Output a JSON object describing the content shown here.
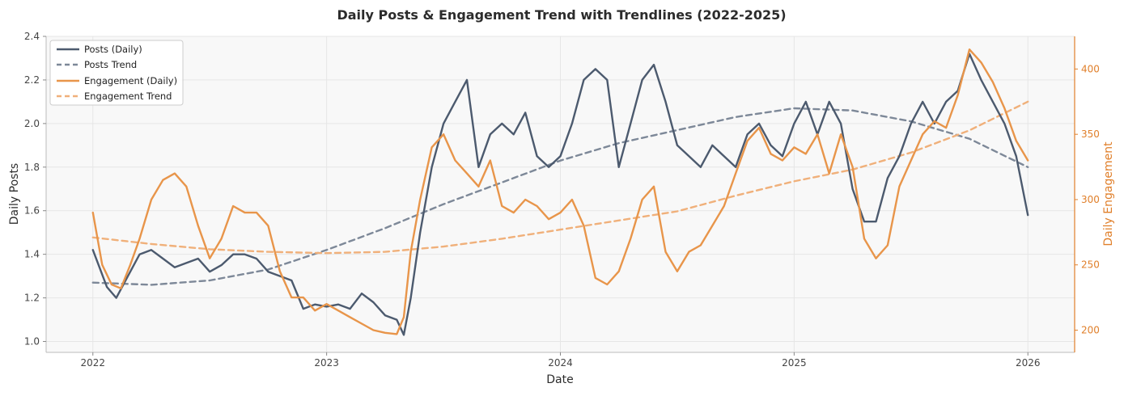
{
  "chart_data": {
    "type": "line",
    "title": "Daily Posts & Engagement Trend with Trendlines (2022-2025)",
    "xlabel": "Date",
    "ylabel_left": "Daily Posts",
    "ylabel_right": "Daily Engagement",
    "xlim": [
      2021.8,
      2026.2
    ],
    "ylim_left": [
      0.95,
      2.4
    ],
    "ylim_right": [
      183,
      425
    ],
    "x_ticks": [
      2022,
      2023,
      2024,
      2025,
      2026
    ],
    "x_tick_labels": [
      "2022",
      "2023",
      "2024",
      "2025",
      "2026"
    ],
    "y_left_ticks": [
      1.0,
      1.2,
      1.4,
      1.6,
      1.8,
      2.0,
      2.2,
      2.4
    ],
    "y_left_tick_labels": [
      "1.0",
      "1.2",
      "1.4",
      "1.6",
      "1.8",
      "2.0",
      "2.2",
      "2.4"
    ],
    "y_right_ticks": [
      200,
      250,
      300,
      350,
      400
    ],
    "y_right_tick_labels": [
      "200",
      "250",
      "300",
      "350",
      "400"
    ],
    "grid": true,
    "legend_position": "top-left",
    "colors": {
      "posts": "#4c5a6e",
      "posts_trend": "#7d8898",
      "engagement": "#e8954a",
      "engagement_trend": "#f0b07a",
      "right_axis": "#e07f2a"
    },
    "series": [
      {
        "name": "Posts (Daily)",
        "axis": "left",
        "x": [
          2022.0,
          2022.06,
          2022.1,
          2022.15,
          2022.2,
          2022.25,
          2022.3,
          2022.35,
          2022.4,
          2022.45,
          2022.5,
          2022.55,
          2022.6,
          2022.65,
          2022.7,
          2022.75,
          2022.8,
          2022.85,
          2022.9,
          2022.95,
          2023.0,
          2023.05,
          2023.1,
          2023.15,
          2023.2,
          2023.25,
          2023.3,
          2023.33,
          2023.36,
          2023.4,
          2023.45,
          2023.5,
          2023.55,
          2023.6,
          2023.65,
          2023.7,
          2023.75,
          2023.8,
          2023.85,
          2023.9,
          2023.95,
          2024.0,
          2024.05,
          2024.1,
          2024.15,
          2024.2,
          2024.25,
          2024.3,
          2024.35,
          2024.4,
          2024.45,
          2024.5,
          2024.55,
          2024.6,
          2024.65,
          2024.7,
          2024.75,
          2024.8,
          2024.85,
          2024.9,
          2024.95,
          2025.0,
          2025.05,
          2025.1,
          2025.15,
          2025.2,
          2025.25,
          2025.3,
          2025.35,
          2025.4,
          2025.45,
          2025.5,
          2025.55,
          2025.6,
          2025.65,
          2025.7,
          2025.75,
          2025.8,
          2025.85,
          2025.9,
          2025.95,
          2026.0
        ],
        "values": [
          1.42,
          1.25,
          1.2,
          1.3,
          1.4,
          1.42,
          1.38,
          1.34,
          1.36,
          1.38,
          1.32,
          1.35,
          1.4,
          1.4,
          1.38,
          1.32,
          1.3,
          1.28,
          1.15,
          1.17,
          1.16,
          1.17,
          1.15,
          1.22,
          1.18,
          1.12,
          1.1,
          1.03,
          1.2,
          1.5,
          1.8,
          2.0,
          2.1,
          2.2,
          1.8,
          1.95,
          2.0,
          1.95,
          2.05,
          1.85,
          1.8,
          1.85,
          2.0,
          2.2,
          2.25,
          2.2,
          1.8,
          2.0,
          2.2,
          2.27,
          2.1,
          1.9,
          1.85,
          1.8,
          1.9,
          1.85,
          1.8,
          1.95,
          2.0,
          1.9,
          1.85,
          2.0,
          2.1,
          1.95,
          2.1,
          2.0,
          1.7,
          1.55,
          1.55,
          1.75,
          1.85,
          2.0,
          2.1,
          2.0,
          2.1,
          2.15,
          2.32,
          2.2,
          2.1,
          2.0,
          1.85,
          1.58
        ]
      },
      {
        "name": "Posts Trend",
        "axis": "left",
        "x": [
          2022.0,
          2022.25,
          2022.5,
          2022.75,
          2023.0,
          2023.25,
          2023.5,
          2023.75,
          2024.0,
          2024.25,
          2024.5,
          2024.75,
          2025.0,
          2025.25,
          2025.5,
          2025.75,
          2026.0
        ],
        "values": [
          1.27,
          1.26,
          1.28,
          1.33,
          1.42,
          1.52,
          1.63,
          1.73,
          1.83,
          1.91,
          1.97,
          2.03,
          2.07,
          2.06,
          2.01,
          1.93,
          1.8
        ]
      },
      {
        "name": "Engagement (Daily)",
        "axis": "right",
        "x": [
          2022.0,
          2022.04,
          2022.08,
          2022.12,
          2022.16,
          2022.2,
          2022.25,
          2022.3,
          2022.35,
          2022.4,
          2022.45,
          2022.5,
          2022.55,
          2022.6,
          2022.65,
          2022.7,
          2022.75,
          2022.8,
          2022.85,
          2022.9,
          2022.95,
          2023.0,
          2023.05,
          2023.1,
          2023.15,
          2023.2,
          2023.25,
          2023.3,
          2023.33,
          2023.36,
          2023.4,
          2023.45,
          2023.5,
          2023.55,
          2023.6,
          2023.65,
          2023.7,
          2023.75,
          2023.8,
          2023.85,
          2023.9,
          2023.95,
          2024.0,
          2024.05,
          2024.1,
          2024.15,
          2024.2,
          2024.25,
          2024.3,
          2024.35,
          2024.4,
          2024.45,
          2024.5,
          2024.55,
          2024.6,
          2024.65,
          2024.7,
          2024.75,
          2024.8,
          2024.85,
          2024.9,
          2024.95,
          2025.0,
          2025.05,
          2025.1,
          2025.15,
          2025.2,
          2025.25,
          2025.3,
          2025.35,
          2025.4,
          2025.45,
          2025.5,
          2025.55,
          2025.6,
          2025.65,
          2025.7,
          2025.75,
          2025.8,
          2025.85,
          2025.9,
          2025.95,
          2026.0
        ],
        "values": [
          290,
          250,
          235,
          232,
          250,
          270,
          300,
          315,
          320,
          310,
          280,
          255,
          270,
          295,
          290,
          290,
          280,
          245,
          225,
          225,
          215,
          220,
          215,
          210,
          205,
          200,
          198,
          197,
          210,
          260,
          300,
          340,
          350,
          330,
          320,
          310,
          330,
          295,
          290,
          300,
          295,
          285,
          290,
          300,
          280,
          240,
          235,
          245,
          270,
          300,
          310,
          260,
          245,
          260,
          265,
          280,
          295,
          320,
          345,
          355,
          335,
          330,
          340,
          335,
          350,
          320,
          350,
          325,
          270,
          255,
          265,
          310,
          330,
          350,
          360,
          355,
          380,
          415,
          405,
          390,
          370,
          345,
          330
        ]
      },
      {
        "name": "Engagement Trend",
        "axis": "right",
        "x": [
          2022.0,
          2022.25,
          2022.5,
          2022.75,
          2023.0,
          2023.25,
          2023.5,
          2023.75,
          2024.0,
          2024.25,
          2024.5,
          2024.75,
          2025.0,
          2025.25,
          2025.5,
          2025.75,
          2026.0
        ],
        "values": [
          271,
          266,
          262,
          260,
          259,
          260,
          264,
          270,
          277,
          284,
          291,
          303,
          314,
          323,
          336,
          353,
          375
        ]
      }
    ]
  }
}
